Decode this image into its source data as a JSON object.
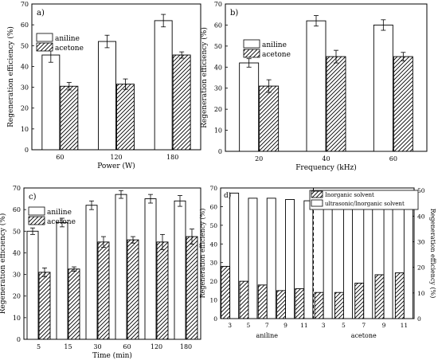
{
  "chart_data": [
    {
      "panel": "a)",
      "type": "bar",
      "xlabel": "Power (W)",
      "ylabel": "Regeneration efficiency (%)",
      "categories": [
        "60",
        "120",
        "180"
      ],
      "ylim": [
        0,
        70
      ],
      "yticks": [
        0,
        10,
        20,
        30,
        40,
        50,
        60,
        70
      ],
      "legend_position": "top-left",
      "series": [
        {
          "name": "aniline",
          "pattern": "open",
          "values": [
            45.5,
            52,
            62
          ],
          "errors": [
            3.5,
            3,
            3
          ]
        },
        {
          "name": "acetone",
          "pattern": "hatched",
          "values": [
            30.5,
            31.5,
            45.5
          ],
          "errors": [
            1.8,
            2.5,
            1.5
          ]
        }
      ]
    },
    {
      "panel": "b)",
      "type": "bar",
      "xlabel": "Frequency (kHz)",
      "ylabel": "Regeneration efficiency (%)",
      "categories": [
        "20",
        "40",
        "60"
      ],
      "ylim": [
        0,
        70
      ],
      "yticks": [
        0,
        10,
        20,
        30,
        40,
        50,
        60,
        70
      ],
      "legend_position": "top-left",
      "series": [
        {
          "name": "aniline",
          "pattern": "open",
          "values": [
            42,
            62,
            60
          ],
          "errors": [
            2,
            2.5,
            2.5
          ]
        },
        {
          "name": "acetone",
          "pattern": "hatched",
          "values": [
            31,
            45,
            45
          ],
          "errors": [
            3,
            3,
            2
          ]
        }
      ]
    },
    {
      "panel": "c)",
      "type": "bar",
      "xlabel": "Time (min)",
      "ylabel": "Regeneration efficiency (%)",
      "categories": [
        "5",
        "15",
        "30",
        "60",
        "120",
        "180"
      ],
      "ylim": [
        0,
        70
      ],
      "yticks": [
        0,
        10,
        20,
        30,
        40,
        50,
        60,
        70
      ],
      "legend_position": "top-left",
      "series": [
        {
          "name": "aniline",
          "pattern": "open",
          "values": [
            50,
            54,
            62,
            67,
            65,
            64
          ],
          "errors": [
            1.5,
            2,
            2,
            1.8,
            2,
            2.5
          ]
        },
        {
          "name": "acetone",
          "pattern": "hatched",
          "values": [
            31,
            32.5,
            45,
            46,
            45,
            47.5
          ],
          "errors": [
            2,
            1,
            2.5,
            1.5,
            3.5,
            3.5
          ]
        }
      ]
    },
    {
      "panel": "d)",
      "type": "bar",
      "ylabel": "Regeneration efficiency (%)",
      "ylabel_right": "Regeneration efficiency (%)",
      "ylim": [
        0,
        70
      ],
      "yticks": [
        0,
        10,
        20,
        30,
        40,
        50,
        60,
        70
      ],
      "ylim_right": [
        0,
        51
      ],
      "yticks_right": [
        0,
        10,
        20,
        30,
        40,
        50
      ],
      "legend_position": "top-right",
      "groups": [
        {
          "name": "aniline",
          "categories": [
            "3",
            "5",
            "7",
            "9",
            "11"
          ]
        },
        {
          "name": "acetone",
          "categories": [
            "3",
            "5",
            "7",
            "9",
            "11"
          ]
        }
      ],
      "series": [
        {
          "name": "Inorganic solvent",
          "pattern": "hatched",
          "axis": "left",
          "values": [
            28,
            20,
            18,
            15,
            16,
            14,
            14,
            19,
            23.5,
            24.5
          ]
        },
        {
          "name": "ultrasonic/Inorganic solvent",
          "pattern": "open",
          "axis": "right",
          "values": [
            49,
            47,
            47,
            46.5,
            46,
            44.5,
            44.5,
            45,
            47,
            47
          ]
        }
      ]
    }
  ]
}
